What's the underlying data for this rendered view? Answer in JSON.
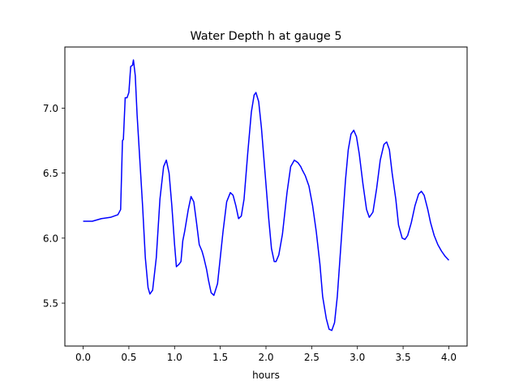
{
  "chart_data": {
    "type": "line",
    "title": "Water Depth h at gauge 5",
    "xlabel": "hours",
    "ylabel": "",
    "xlim": [
      -0.2,
      4.2
    ],
    "ylim": [
      5.17,
      7.47
    ],
    "xticks": [
      0.0,
      0.5,
      1.0,
      1.5,
      2.0,
      2.5,
      3.0,
      3.5,
      4.0
    ],
    "xtick_labels": [
      "0.0",
      "0.5",
      "1.0",
      "1.5",
      "2.0",
      "2.5",
      "3.0",
      "3.5",
      "4.0"
    ],
    "yticks": [
      5.5,
      6.0,
      6.5,
      7.0
    ],
    "ytick_labels": [
      "5.5",
      "6.0",
      "6.5",
      "7.0"
    ],
    "grid": false,
    "series": [
      {
        "color": "#0000ff",
        "points": [
          [
            0.0,
            6.13
          ],
          [
            0.1,
            6.13
          ],
          [
            0.2,
            6.15
          ],
          [
            0.3,
            6.16
          ],
          [
            0.38,
            6.18
          ],
          [
            0.41,
            6.22
          ],
          [
            0.43,
            6.75
          ],
          [
            0.44,
            6.76
          ],
          [
            0.46,
            7.08
          ],
          [
            0.48,
            7.08
          ],
          [
            0.5,
            7.12
          ],
          [
            0.52,
            7.32
          ],
          [
            0.54,
            7.33
          ],
          [
            0.55,
            7.37
          ],
          [
            0.57,
            7.25
          ],
          [
            0.59,
            6.95
          ],
          [
            0.62,
            6.6
          ],
          [
            0.65,
            6.25
          ],
          [
            0.68,
            5.85
          ],
          [
            0.71,
            5.62
          ],
          [
            0.73,
            5.57
          ],
          [
            0.76,
            5.6
          ],
          [
            0.8,
            5.85
          ],
          [
            0.84,
            6.3
          ],
          [
            0.88,
            6.55
          ],
          [
            0.91,
            6.6
          ],
          [
            0.94,
            6.5
          ],
          [
            0.97,
            6.25
          ],
          [
            1.0,
            5.95
          ],
          [
            1.02,
            5.78
          ],
          [
            1.05,
            5.8
          ],
          [
            1.07,
            5.82
          ],
          [
            1.09,
            5.98
          ],
          [
            1.11,
            6.05
          ],
          [
            1.15,
            6.22
          ],
          [
            1.18,
            6.32
          ],
          [
            1.21,
            6.28
          ],
          [
            1.24,
            6.12
          ],
          [
            1.27,
            5.95
          ],
          [
            1.3,
            5.9
          ],
          [
            1.32,
            5.85
          ],
          [
            1.35,
            5.76
          ],
          [
            1.37,
            5.68
          ],
          [
            1.4,
            5.58
          ],
          [
            1.43,
            5.56
          ],
          [
            1.47,
            5.65
          ],
          [
            1.5,
            5.85
          ],
          [
            1.53,
            6.05
          ],
          [
            1.57,
            6.28
          ],
          [
            1.61,
            6.35
          ],
          [
            1.64,
            6.33
          ],
          [
            1.67,
            6.25
          ],
          [
            1.7,
            6.15
          ],
          [
            1.73,
            6.17
          ],
          [
            1.76,
            6.3
          ],
          [
            1.8,
            6.65
          ],
          [
            1.84,
            6.97
          ],
          [
            1.87,
            7.1
          ],
          [
            1.89,
            7.12
          ],
          [
            1.92,
            7.05
          ],
          [
            1.95,
            6.85
          ],
          [
            1.99,
            6.5
          ],
          [
            2.03,
            6.15
          ],
          [
            2.06,
            5.92
          ],
          [
            2.09,
            5.82
          ],
          [
            2.11,
            5.82
          ],
          [
            2.14,
            5.87
          ],
          [
            2.18,
            6.03
          ],
          [
            2.23,
            6.35
          ],
          [
            2.27,
            6.55
          ],
          [
            2.31,
            6.6
          ],
          [
            2.35,
            6.58
          ],
          [
            2.38,
            6.55
          ],
          [
            2.4,
            6.52
          ],
          [
            2.43,
            6.48
          ],
          [
            2.47,
            6.4
          ],
          [
            2.51,
            6.25
          ],
          [
            2.55,
            6.05
          ],
          [
            2.59,
            5.8
          ],
          [
            2.62,
            5.55
          ],
          [
            2.66,
            5.38
          ],
          [
            2.69,
            5.3
          ],
          [
            2.72,
            5.29
          ],
          [
            2.75,
            5.35
          ],
          [
            2.78,
            5.55
          ],
          [
            2.81,
            5.85
          ],
          [
            2.84,
            6.15
          ],
          [
            2.87,
            6.45
          ],
          [
            2.9,
            6.68
          ],
          [
            2.93,
            6.8
          ],
          [
            2.96,
            6.83
          ],
          [
            2.99,
            6.78
          ],
          [
            3.02,
            6.65
          ],
          [
            3.06,
            6.42
          ],
          [
            3.1,
            6.22
          ],
          [
            3.13,
            6.16
          ],
          [
            3.17,
            6.2
          ],
          [
            3.21,
            6.38
          ],
          [
            3.25,
            6.6
          ],
          [
            3.29,
            6.72
          ],
          [
            3.32,
            6.74
          ],
          [
            3.35,
            6.68
          ],
          [
            3.38,
            6.5
          ],
          [
            3.42,
            6.3
          ],
          [
            3.45,
            6.1
          ],
          [
            3.49,
            6.0
          ],
          [
            3.52,
            5.99
          ],
          [
            3.55,
            6.02
          ],
          [
            3.59,
            6.12
          ],
          [
            3.63,
            6.25
          ],
          [
            3.67,
            6.34
          ],
          [
            3.7,
            6.36
          ],
          [
            3.73,
            6.33
          ],
          [
            3.77,
            6.22
          ],
          [
            3.8,
            6.12
          ],
          [
            3.84,
            6.02
          ],
          [
            3.88,
            5.95
          ],
          [
            3.92,
            5.9
          ],
          [
            3.96,
            5.86
          ],
          [
            4.0,
            5.83
          ]
        ]
      }
    ]
  }
}
